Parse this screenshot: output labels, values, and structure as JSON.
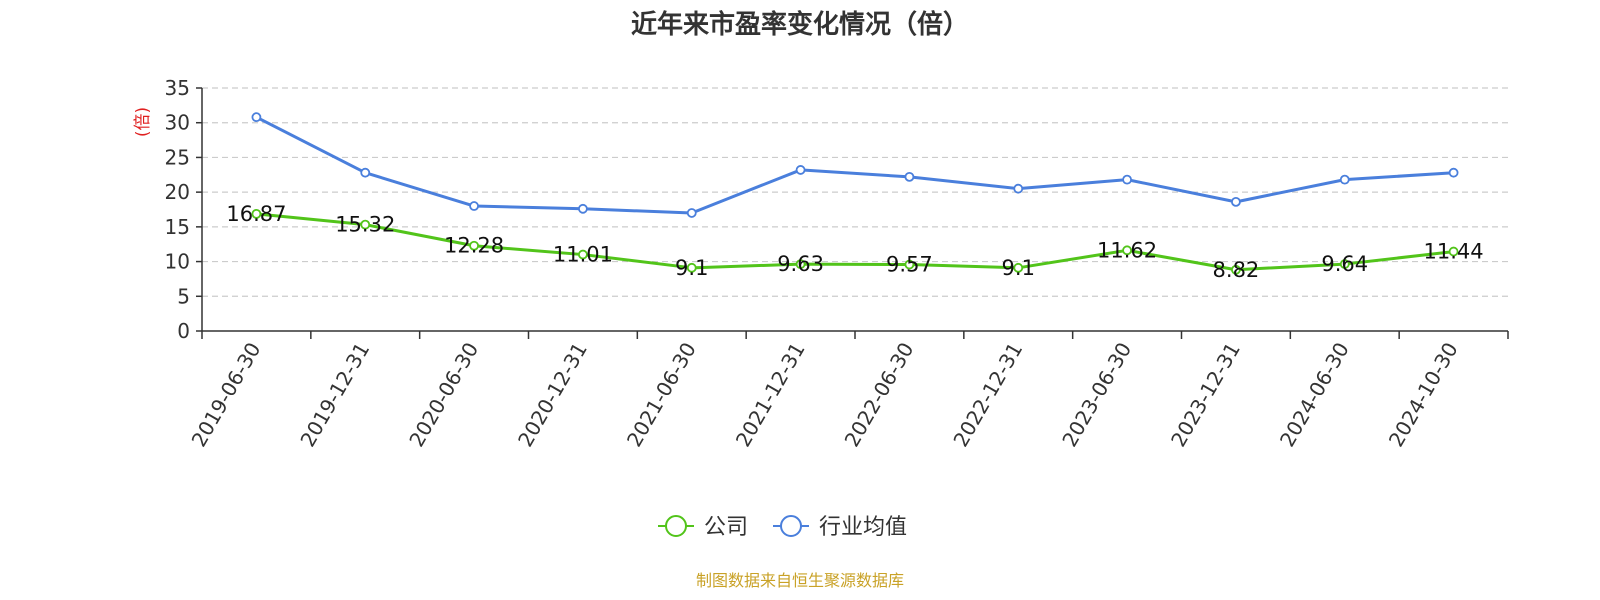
{
  "chart_data": {
    "type": "line",
    "title": "近年来市盈率变化情况（倍）",
    "ylabel": "(倍)",
    "xlabel": "",
    "ylim": [
      0,
      35
    ],
    "yticks": [
      0,
      5,
      10,
      15,
      20,
      25,
      30,
      35
    ],
    "grid": true,
    "legend_position": "bottom-center",
    "categories": [
      "2019-06-30",
      "2019-12-31",
      "2020-06-30",
      "2020-12-31",
      "2021-06-30",
      "2021-12-31",
      "2022-06-30",
      "2022-12-31",
      "2023-06-30",
      "2023-12-31",
      "2024-06-30",
      "2024-10-30"
    ],
    "series": [
      {
        "name": "公司",
        "color": "#52c41a",
        "values": [
          16.87,
          15.32,
          12.28,
          11.01,
          9.1,
          9.63,
          9.57,
          9.1,
          11.62,
          8.82,
          9.64,
          11.44
        ],
        "data_labels": [
          "16.87",
          "15.32",
          "12.28",
          "11.01",
          "9.1",
          "9.63",
          "9.57",
          "9.1",
          "11.62",
          "8.82",
          "9.64",
          "11.44"
        ]
      },
      {
        "name": "行业均值",
        "color": "#4a7fdc",
        "values": [
          30.8,
          22.8,
          18.0,
          17.6,
          17.0,
          23.2,
          22.2,
          20.5,
          21.8,
          18.6,
          21.8,
          22.8
        ]
      }
    ]
  },
  "source_note": "制图数据来自恒生聚源数据库",
  "ylabel_color": "#e02020"
}
